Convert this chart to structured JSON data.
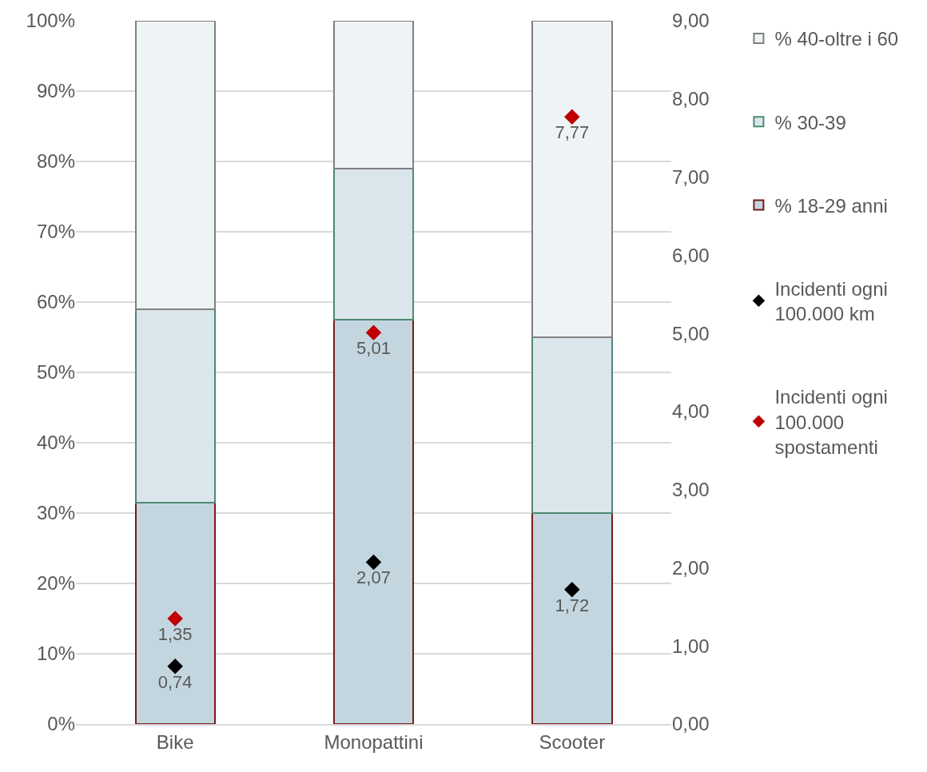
{
  "chart_data": {
    "type": "bar",
    "stacked": true,
    "categories": [
      "Bike",
      "Monopattini",
      "Scooter"
    ],
    "series": [
      {
        "name": "% 18-29 anni",
        "color": "#c3d6e0",
        "values": [
          31.5,
          57.5,
          30
        ]
      },
      {
        "name": "% 30-39",
        "color": "#dae6ec",
        "values": [
          27.5,
          21.5,
          25
        ]
      },
      {
        "name": "% 40-oltre i 60",
        "color": "#eef3f6",
        "values": [
          41,
          21,
          45
        ]
      },
      {
        "name": "Incidenti ogni\n100.000 km",
        "type": "scatter",
        "axis": "y2",
        "marker": "diamond",
        "color": "#000000",
        "values": [
          0.74,
          2.07,
          1.72
        ],
        "value_labels": [
          "0,74",
          "2,07",
          "1,72"
        ]
      },
      {
        "name": "Incidenti ogni\n100.000\nspostamenti",
        "type": "scatter",
        "axis": "y2",
        "marker": "diamond",
        "color": "#c00000",
        "values": [
          1.35,
          5.01,
          7.77
        ],
        "value_labels": [
          "1,35",
          "5,01",
          "7,77"
        ]
      }
    ],
    "ylim": [
      0,
      100
    ],
    "yticks": [
      {
        "value": 0,
        "label": "0%"
      },
      {
        "value": 10,
        "label": "10%"
      },
      {
        "value": 20,
        "label": "20%"
      },
      {
        "value": 30,
        "label": "30%"
      },
      {
        "value": 40,
        "label": "40%"
      },
      {
        "value": 50,
        "label": "50%"
      },
      {
        "value": 60,
        "label": "60%"
      },
      {
        "value": 70,
        "label": "70%"
      },
      {
        "value": 80,
        "label": "80%"
      },
      {
        "value": 90,
        "label": "90%"
      },
      {
        "value": 100,
        "label": "100%"
      }
    ],
    "y2lim": [
      0,
      9
    ],
    "y2ticks": [
      {
        "value": 0,
        "label": "0,00"
      },
      {
        "value": 1,
        "label": "1,00"
      },
      {
        "value": 2,
        "label": "2,00"
      },
      {
        "value": 3,
        "label": "3,00"
      },
      {
        "value": 4,
        "label": "4,00"
      },
      {
        "value": 5,
        "label": "5,00"
      },
      {
        "value": 6,
        "label": "6,00"
      },
      {
        "value": 7,
        "label": "7,00"
      },
      {
        "value": 8,
        "label": "8,00"
      },
      {
        "value": 9,
        "label": "9,00"
      }
    ],
    "grid": "y",
    "legend": "right"
  }
}
